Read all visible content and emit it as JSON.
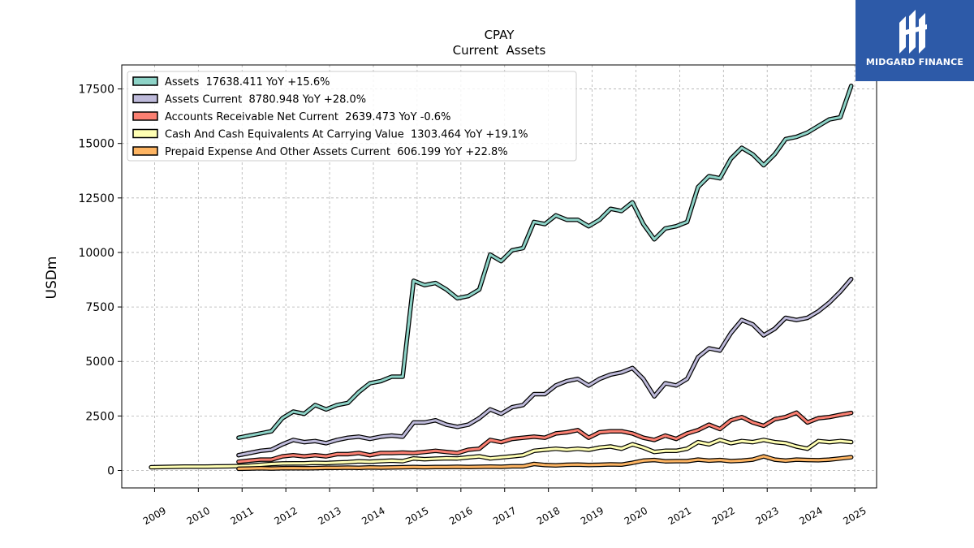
{
  "logo": {
    "text": "MIDGARD FINANCE"
  },
  "chart_data": {
    "type": "line",
    "title": "CPAY",
    "subtitle": "Current  Assets",
    "ylabel": "USDm",
    "xlabel": "",
    "xlim": [
      2008.25,
      2025.5
    ],
    "ylim": [
      -800,
      18600
    ],
    "yticks": [
      0,
      2500,
      5000,
      7500,
      10000,
      12500,
      15000,
      17500
    ],
    "xticks": [
      2009,
      2010,
      2011,
      2012,
      2013,
      2014,
      2015,
      2016,
      2017,
      2018,
      2019,
      2020,
      2021,
      2022,
      2023,
      2024,
      2025
    ],
    "grid": true,
    "legend_position": "top-left",
    "series": [
      {
        "name": "Assets  17638.411 YoY +15.6%",
        "color": "#8dd3c7",
        "x": [
          2010.92,
          2011.17,
          2011.42,
          2011.67,
          2011.92,
          2012.17,
          2012.42,
          2012.67,
          2012.92,
          2013.17,
          2013.42,
          2013.67,
          2013.92,
          2014.17,
          2014.42,
          2014.67,
          2014.92,
          2015.17,
          2015.42,
          2015.67,
          2015.92,
          2016.17,
          2016.42,
          2016.67,
          2016.92,
          2017.17,
          2017.42,
          2017.67,
          2017.92,
          2018.17,
          2018.42,
          2018.67,
          2018.92,
          2019.17,
          2019.42,
          2019.67,
          2019.92,
          2020.17,
          2020.42,
          2020.67,
          2020.92,
          2021.17,
          2021.42,
          2021.67,
          2021.92,
          2022.17,
          2022.42,
          2022.67,
          2022.92,
          2023.17,
          2023.42,
          2023.67,
          2023.92,
          2024.17,
          2024.42,
          2024.67,
          2024.92
        ],
        "y": [
          1500,
          1600,
          1700,
          1800,
          2400,
          2700,
          2600,
          3000,
          2800,
          3000,
          3100,
          3600,
          4000,
          4100,
          4300,
          4300,
          8700,
          8500,
          8600,
          8300,
          7900,
          8000,
          8300,
          9900,
          9600,
          10100,
          10200,
          11400,
          11300,
          11700,
          11500,
          11500,
          11200,
          11500,
          12000,
          11900,
          12300,
          11300,
          10600,
          11100,
          11200,
          11400,
          13000,
          13500,
          13400,
          14300,
          14800,
          14500,
          14000,
          14500,
          15200,
          15300,
          15500,
          15800,
          16100,
          16200,
          17640
        ]
      },
      {
        "name": "Assets Current  8780.948 YoY +28.0%",
        "color": "#bebada",
        "x": [
          2010.92,
          2011.17,
          2011.42,
          2011.67,
          2011.92,
          2012.17,
          2012.42,
          2012.67,
          2012.92,
          2013.17,
          2013.42,
          2013.67,
          2013.92,
          2014.17,
          2014.42,
          2014.67,
          2014.92,
          2015.17,
          2015.42,
          2015.67,
          2015.92,
          2016.17,
          2016.42,
          2016.67,
          2016.92,
          2017.17,
          2017.42,
          2017.67,
          2017.92,
          2018.17,
          2018.42,
          2018.67,
          2018.92,
          2019.17,
          2019.42,
          2019.67,
          2019.92,
          2020.17,
          2020.42,
          2020.67,
          2020.92,
          2021.17,
          2021.42,
          2021.67,
          2021.92,
          2022.17,
          2022.42,
          2022.67,
          2022.92,
          2023.17,
          2023.42,
          2023.67,
          2023.92,
          2024.17,
          2024.42,
          2024.67,
          2024.92
        ],
        "y": [
          700,
          800,
          900,
          950,
          1200,
          1400,
          1300,
          1350,
          1250,
          1400,
          1500,
          1550,
          1450,
          1550,
          1600,
          1550,
          2200,
          2200,
          2300,
          2100,
          2000,
          2100,
          2400,
          2800,
          2600,
          2900,
          3000,
          3500,
          3500,
          3900,
          4100,
          4200,
          3900,
          4200,
          4400,
          4500,
          4700,
          4200,
          3400,
          4000,
          3900,
          4200,
          5200,
          5600,
          5500,
          6300,
          6900,
          6700,
          6200,
          6500,
          7000,
          6900,
          7000,
          7300,
          7700,
          8200,
          8780
        ]
      },
      {
        "name": "Accounts Receivable Net Current  2639.473 YoY -0.6%",
        "color": "#fb8072",
        "x": [
          2010.92,
          2011.17,
          2011.42,
          2011.67,
          2011.92,
          2012.17,
          2012.42,
          2012.67,
          2012.92,
          2013.17,
          2013.42,
          2013.67,
          2013.92,
          2014.17,
          2014.42,
          2014.67,
          2014.92,
          2015.17,
          2015.42,
          2015.67,
          2015.92,
          2016.17,
          2016.42,
          2016.67,
          2016.92,
          2017.17,
          2017.42,
          2017.67,
          2017.92,
          2018.17,
          2018.42,
          2018.67,
          2018.92,
          2019.17,
          2019.42,
          2019.67,
          2019.92,
          2020.17,
          2020.42,
          2020.67,
          2020.92,
          2021.17,
          2021.42,
          2021.67,
          2021.92,
          2022.17,
          2022.42,
          2022.67,
          2022.92,
          2023.17,
          2023.42,
          2023.67,
          2023.92,
          2024.17,
          2024.42,
          2024.67,
          2024.92
        ],
        "y": [
          400,
          450,
          500,
          500,
          650,
          700,
          650,
          700,
          650,
          750,
          750,
          800,
          700,
          800,
          800,
          820,
          800,
          850,
          900,
          850,
          800,
          950,
          1000,
          1400,
          1300,
          1450,
          1500,
          1550,
          1500,
          1700,
          1750,
          1850,
          1500,
          1750,
          1800,
          1800,
          1700,
          1500,
          1400,
          1600,
          1450,
          1700,
          1850,
          2100,
          1900,
          2300,
          2450,
          2200,
          2050,
          2350,
          2450,
          2650,
          2200,
          2400,
          2450,
          2550,
          2640
        ]
      },
      {
        "name": "Cash And Cash Equivalents At Carrying Value  1303.464 YoY +19.1%",
        "color": "#ffffb3",
        "x": [
          2008.92,
          2009.17,
          2009.42,
          2009.67,
          2009.92,
          2010.17,
          2010.42,
          2010.67,
          2010.92,
          2011.17,
          2011.42,
          2011.67,
          2011.92,
          2012.17,
          2012.42,
          2012.67,
          2012.92,
          2013.17,
          2013.42,
          2013.67,
          2013.92,
          2014.17,
          2014.42,
          2014.67,
          2014.92,
          2015.17,
          2015.42,
          2015.67,
          2015.92,
          2016.17,
          2016.42,
          2016.67,
          2016.92,
          2017.17,
          2017.42,
          2017.67,
          2017.92,
          2018.17,
          2018.42,
          2018.67,
          2018.92,
          2019.17,
          2019.42,
          2019.67,
          2019.92,
          2020.17,
          2020.42,
          2020.67,
          2020.92,
          2021.17,
          2021.42,
          2021.67,
          2021.92,
          2022.17,
          2022.42,
          2022.67,
          2022.92,
          2023.17,
          2023.42,
          2023.67,
          2023.92,
          2024.17,
          2024.42,
          2024.67,
          2024.92
        ],
        "y": [
          150,
          160,
          170,
          175,
          180,
          180,
          185,
          190,
          200,
          220,
          260,
          300,
          320,
          330,
          330,
          350,
          340,
          360,
          380,
          420,
          400,
          430,
          450,
          430,
          550,
          520,
          540,
          560,
          550,
          600,
          650,
          550,
          600,
          650,
          700,
          900,
          950,
          1000,
          950,
          1000,
          950,
          1050,
          1100,
          1000,
          1200,
          1050,
          850,
          900,
          900,
          1000,
          1300,
          1200,
          1400,
          1250,
          1350,
          1300,
          1400,
          1300,
          1250,
          1100,
          1000,
          1350,
          1300,
          1350,
          1303
        ]
      },
      {
        "name": "Prepaid Expense And Other Assets Current  606.199 YoY +22.8%",
        "color": "#fdb462",
        "x": [
          2010.92,
          2011.17,
          2011.42,
          2011.67,
          2011.92,
          2012.17,
          2012.42,
          2012.67,
          2012.92,
          2013.17,
          2013.42,
          2013.67,
          2013.92,
          2014.17,
          2014.42,
          2014.67,
          2014.92,
          2015.17,
          2015.42,
          2015.67,
          2015.92,
          2016.17,
          2016.42,
          2016.67,
          2016.92,
          2017.17,
          2017.42,
          2017.67,
          2017.92,
          2018.17,
          2018.42,
          2018.67,
          2018.92,
          2019.17,
          2019.42,
          2019.67,
          2019.92,
          2020.17,
          2020.42,
          2020.67,
          2020.92,
          2021.17,
          2021.42,
          2021.67,
          2021.92,
          2022.17,
          2022.42,
          2022.67,
          2022.92,
          2023.17,
          2023.42,
          2023.67,
          2023.92,
          2024.17,
          2024.42,
          2024.67,
          2024.92
        ],
        "y": [
          80,
          90,
          100,
          90,
          100,
          110,
          100,
          110,
          120,
          120,
          130,
          120,
          140,
          130,
          140,
          150,
          160,
          150,
          160,
          160,
          170,
          160,
          170,
          180,
          170,
          190,
          190,
          300,
          250,
          230,
          260,
          270,
          250,
          260,
          280,
          270,
          350,
          450,
          480,
          420,
          430,
          430,
          500,
          450,
          480,
          430,
          450,
          500,
          650,
          500,
          450,
          500,
          480,
          470,
          500,
          550,
          606
        ]
      }
    ]
  }
}
